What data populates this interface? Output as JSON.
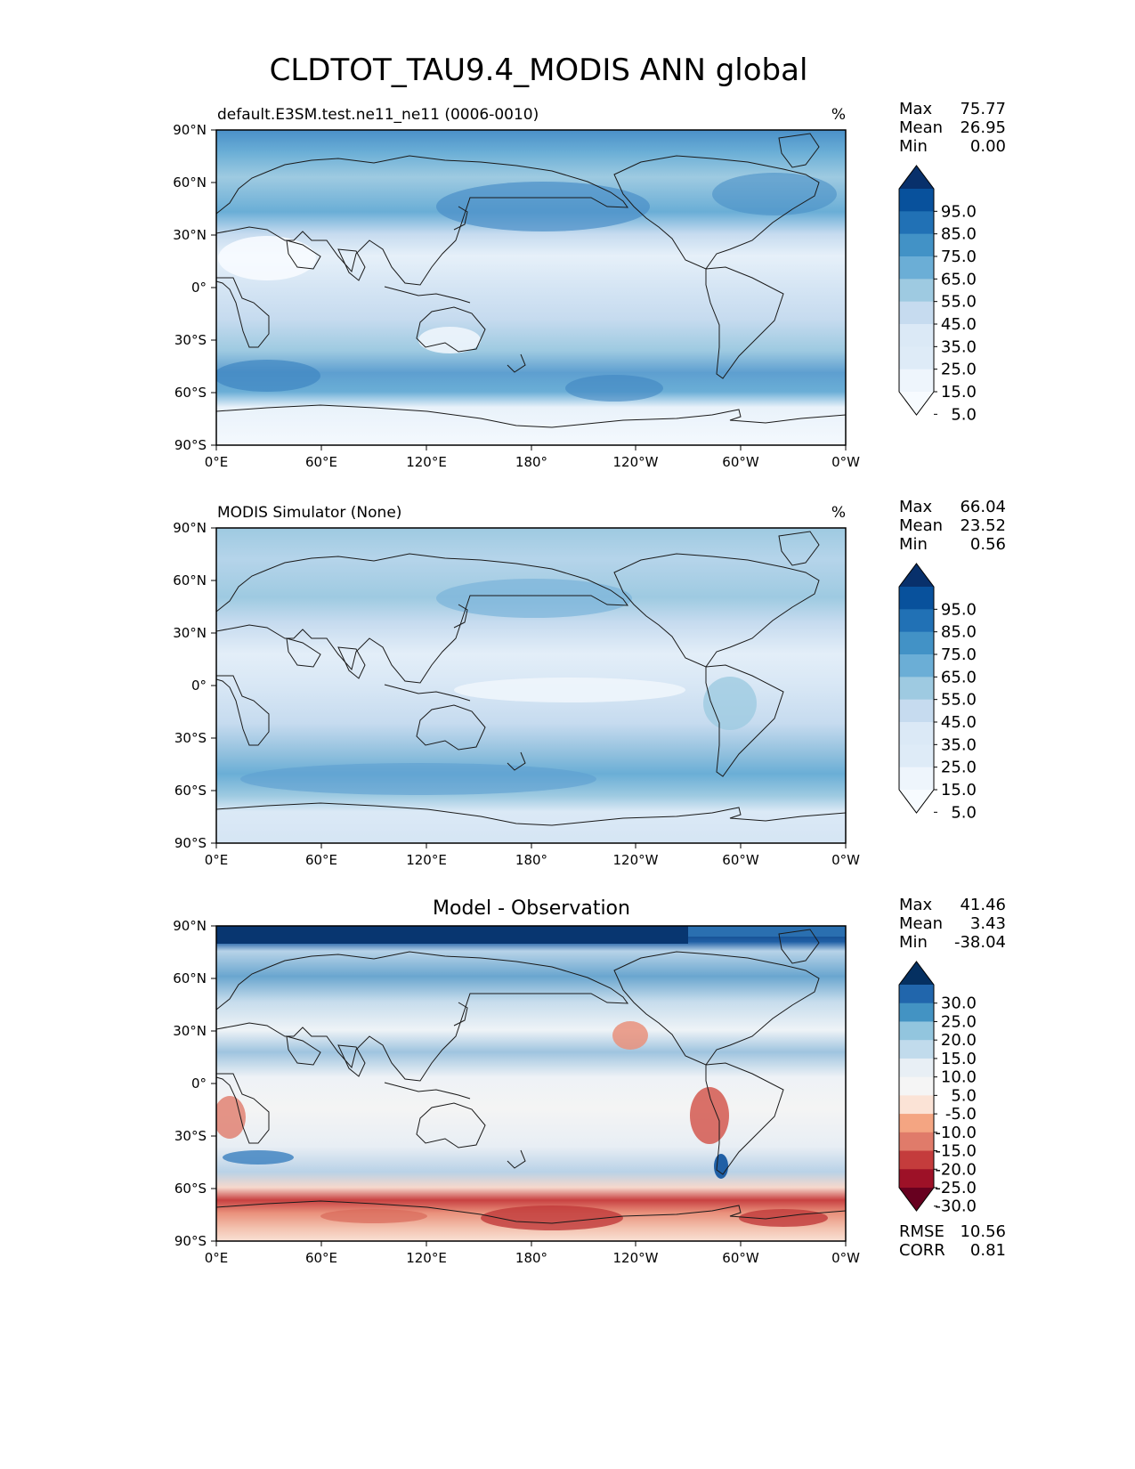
{
  "title": "CLDTOT_TAU9.4_MODIS ANN global",
  "lat_ticks": [
    "90°N",
    "60°N",
    "30°N",
    "0°",
    "30°S",
    "60°S",
    "90°S"
  ],
  "lon_ticks": [
    "0°E",
    "60°E",
    "120°E",
    "180°",
    "120°W",
    "60°W",
    "0°W"
  ],
  "chart_data": [
    {
      "type": "heatmap",
      "panel": "test",
      "title_left": "default.E3SM.test.ne11_ne11 (0006-0010)",
      "units": "%",
      "stats": {
        "max": "75.77",
        "mean": "26.95",
        "min": "0.00"
      },
      "stat_labels": {
        "max": "Max",
        "mean": "Mean",
        "min": "Min"
      },
      "colorbar_levels": [
        "95.0",
        "85.0",
        "75.0",
        "65.0",
        "55.0",
        "45.0",
        "35.0",
        "25.0",
        "15.0",
        "5.0"
      ],
      "colorbar_colors": [
        "#08306b",
        "#08519c",
        "#2171b5",
        "#4292c6",
        "#6baed6",
        "#9ecae1",
        "#c6dbef",
        "#dbe9f6",
        "#deebf7",
        "#eef5fc",
        "#f7fbff"
      ],
      "xlim": [
        0,
        360
      ],
      "ylim": [
        -90,
        90
      ]
    },
    {
      "type": "heatmap",
      "panel": "reference",
      "title_left": "MODIS Simulator (None)",
      "units": "%",
      "stats": {
        "max": "66.04",
        "mean": "23.52",
        "min": "0.56"
      },
      "stat_labels": {
        "max": "Max",
        "mean": "Mean",
        "min": "Min"
      },
      "colorbar_levels": [
        "95.0",
        "85.0",
        "75.0",
        "65.0",
        "55.0",
        "45.0",
        "35.0",
        "25.0",
        "15.0",
        "5.0"
      ],
      "colorbar_colors": [
        "#08306b",
        "#08519c",
        "#2171b5",
        "#4292c6",
        "#6baed6",
        "#9ecae1",
        "#c6dbef",
        "#dbe9f6",
        "#deebf7",
        "#eef5fc",
        "#f7fbff"
      ],
      "xlim": [
        0,
        360
      ],
      "ylim": [
        -90,
        90
      ]
    },
    {
      "type": "heatmap",
      "panel": "difference",
      "title_center": "Model - Observation",
      "stats": {
        "max": "41.46",
        "mean": "3.43",
        "min": "-38.04"
      },
      "stat_labels": {
        "max": "Max",
        "mean": "Mean",
        "min": "Min"
      },
      "rmse": "10.56",
      "corr": "0.81",
      "rmse_label": "RMSE",
      "corr_label": "CORR",
      "colorbar_levels": [
        "30.0",
        "25.0",
        "20.0",
        "15.0",
        "10.0",
        "5.0",
        "-5.0",
        "-10.0",
        "-15.0",
        "-20.0",
        "-25.0",
        "-30.0"
      ],
      "colorbar_colors": [
        "#053061",
        "#2166ac",
        "#4393c3",
        "#92c5de",
        "#c1dbec",
        "#e8eff5",
        "#f5f5f5",
        "#fbe3d6",
        "#f4a582",
        "#e07b6a",
        "#c43c3c",
        "#9d1127",
        "#67001f"
      ],
      "xlim": [
        0,
        360
      ],
      "ylim": [
        -90,
        90
      ]
    }
  ]
}
